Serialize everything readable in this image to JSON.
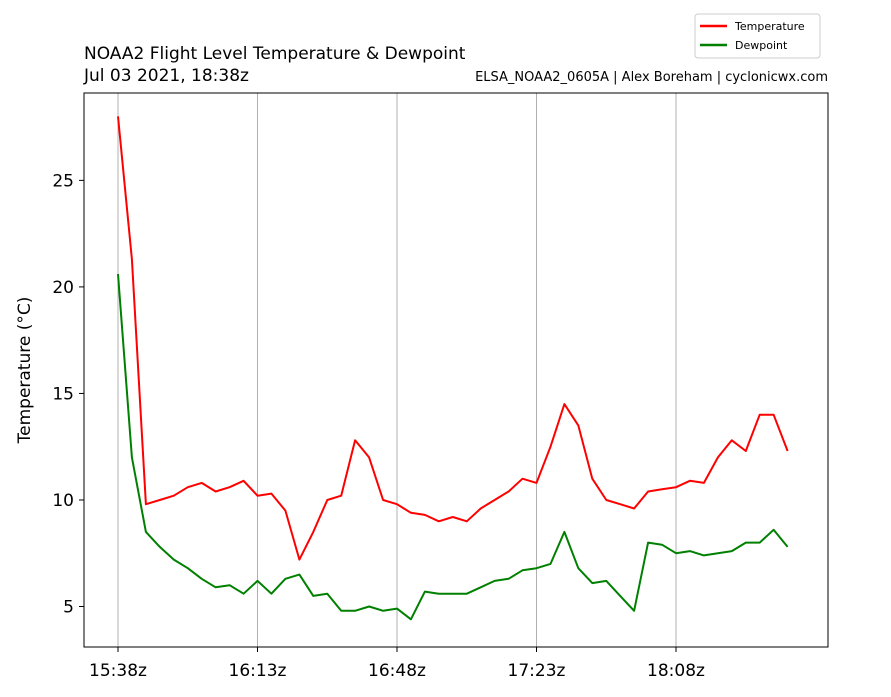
{
  "chart_data": {
    "type": "line",
    "title": "NOAA2 Flight Level Temperature & Dewpoint",
    "subtitle": "Jul 03 2021, 18:38z",
    "credit": "ELSA_NOAA2_0605A | Alex Boreham | cyclonicwx.com",
    "y_label": "Temperature (°C)",
    "categories": [
      "15:38z",
      null,
      null,
      null,
      null,
      null,
      null,
      null,
      null,
      null,
      "16:13z",
      null,
      null,
      null,
      null,
      null,
      null,
      null,
      null,
      null,
      "16:48z",
      null,
      null,
      null,
      null,
      null,
      null,
      null,
      null,
      null,
      "17:23z",
      null,
      null,
      null,
      null,
      null,
      null,
      null,
      null,
      null,
      "18:08z",
      null,
      null,
      null,
      null,
      null,
      null,
      null,
      null
    ],
    "series": [
      {
        "name": "Temperature",
        "color": "#ff0000",
        "values": [
          28,
          21.3,
          9.8,
          10,
          10.2,
          10.6,
          10.8,
          10.4,
          10.6,
          10.9,
          10.2,
          10.3,
          9.5,
          7.2,
          8.5,
          10,
          10.2,
          12.8,
          12,
          10,
          9.8,
          9.4,
          9.3,
          9,
          9.2,
          9,
          9.6,
          10,
          10.4,
          11,
          10.8,
          12.5,
          14.5,
          13.5,
          11,
          10,
          9.8,
          9.6,
          10.4,
          10.5,
          10.6,
          10.9,
          10.8,
          12,
          12.8,
          12.3,
          14,
          14,
          12.3
        ]
      },
      {
        "name": "Dewpoint",
        "color": "#008000",
        "values": [
          20.6,
          12,
          8.5,
          7.8,
          7.2,
          6.8,
          6.3,
          5.9,
          6,
          5.6,
          6.2,
          5.6,
          6.3,
          6.5,
          5.5,
          5.6,
          4.8,
          4.8,
          5,
          4.8,
          4.9,
          4.4,
          5.7,
          5.6,
          5.6,
          5.6,
          5.9,
          6.2,
          6.3,
          6.7,
          6.8,
          7,
          8.5,
          6.8,
          6.1,
          6.2,
          5.5,
          4.8,
          8,
          7.9,
          7.5,
          7.6,
          7.4,
          7.5,
          7.6,
          8,
          8,
          8.6,
          7.8
        ]
      }
    ],
    "ylim": [
      3.1,
      29.1
    ],
    "yticks": [
      5,
      10,
      15,
      20,
      25
    ],
    "x_grid": true,
    "legend": "upper right"
  }
}
